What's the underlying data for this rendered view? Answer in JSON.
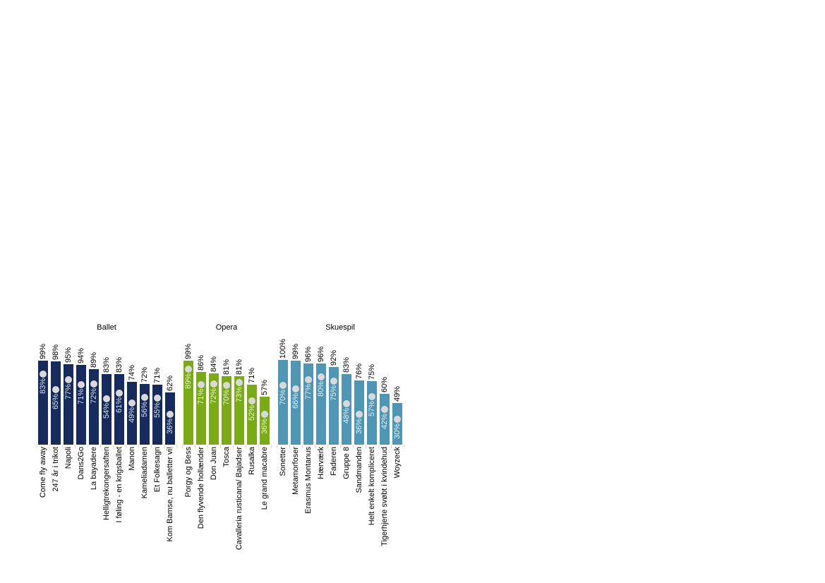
{
  "page": {
    "background": "#ffffff"
  },
  "chart_data": {
    "type": "bar",
    "title": "",
    "value_suffix": "%",
    "ylim": [
      0,
      100
    ],
    "grid": "off",
    "legend": "none",
    "marker": {
      "shape": "circle",
      "color": "#d9d9d9",
      "meaning": "secondary percentage plotted inside each bar"
    },
    "axis_tick_color": "#d9d9d9",
    "groups": [
      {
        "label": "Ballet",
        "bar_color": "#162a5c",
        "bars": [
          {
            "name": "Come fly away",
            "bar_pct": 99,
            "bar_label": "99%",
            "dot_pct": 83,
            "dot_label": "83%"
          },
          {
            "name": "247 år i trikot",
            "bar_pct": 98,
            "bar_label": "98%",
            "dot_pct": 65,
            "dot_label": "65%"
          },
          {
            "name": "Napoli",
            "bar_pct": 95,
            "bar_label": "95%",
            "dot_pct": 77,
            "dot_label": "77%"
          },
          {
            "name": "Dans2Go",
            "bar_pct": 94,
            "bar_label": "94%",
            "dot_pct": 71,
            "dot_label": "71%"
          },
          {
            "name": "La bayadere",
            "bar_pct": 89,
            "bar_label": "89%",
            "dot_pct": 72,
            "dot_label": "72%"
          },
          {
            "name": "Helligtrekongersaften",
            "bar_pct": 83,
            "bar_label": "83%",
            "dot_pct": 54,
            "dot_label": "54%"
          },
          {
            "name": "I føling - en krigsballet",
            "bar_pct": 83,
            "bar_label": "83%",
            "dot_pct": 61,
            "dot_label": "61%"
          },
          {
            "name": "Manon",
            "bar_pct": 74,
            "bar_label": "74%",
            "dot_pct": 49,
            "dot_label": "49%"
          },
          {
            "name": "Kameliadamen",
            "bar_pct": 72,
            "bar_label": "72%",
            "dot_pct": 56,
            "dot_label": "56%"
          },
          {
            "name": "Et Folkesagn",
            "bar_pct": 71,
            "bar_label": "71%",
            "dot_pct": 55,
            "dot_label": "55%"
          },
          {
            "name": "Kom Bamse, nu balletter vi!",
            "bar_pct": 62,
            "bar_label": "62%",
            "dot_pct": 36,
            "dot_label": "36%"
          }
        ]
      },
      {
        "label": "Opera",
        "bar_color": "#7aab17",
        "bars": [
          {
            "name": "Porgy og Bess",
            "bar_pct": 99,
            "bar_label": "99%",
            "dot_pct": 89,
            "dot_label": "89%"
          },
          {
            "name": "Den flyvende hollænder",
            "bar_pct": 86,
            "bar_label": "86%",
            "dot_pct": 71,
            "dot_label": "71%"
          },
          {
            "name": "Don Juan",
            "bar_pct": 84,
            "bar_label": "84%",
            "dot_pct": 72,
            "dot_label": "72%"
          },
          {
            "name": "Tosca",
            "bar_pct": 81,
            "bar_label": "81%",
            "dot_pct": 70,
            "dot_label": "70%"
          },
          {
            "name": "Cavalleria rusticana/ Bajadser",
            "bar_pct": 81,
            "bar_label": "81%",
            "dot_pct": 73,
            "dot_label": "73%"
          },
          {
            "name": "Rusalka",
            "bar_pct": 71,
            "bar_label": "71%",
            "dot_pct": 52,
            "dot_label": "52%"
          },
          {
            "name": "Le grand macabre",
            "bar_pct": 57,
            "bar_label": "57%",
            "dot_pct": 36,
            "dot_label": "36%"
          }
        ]
      },
      {
        "label": "Skuespil",
        "bar_color": "#4f95b4",
        "bars": [
          {
            "name": "Sonetter",
            "bar_pct": 100,
            "bar_label": "100%",
            "dot_pct": 70,
            "dot_label": "70%"
          },
          {
            "name": "Metamorfoser",
            "bar_pct": 99,
            "bar_label": "99%",
            "dot_pct": 66,
            "dot_label": "66%"
          },
          {
            "name": "Erasmus Montanus",
            "bar_pct": 96,
            "bar_label": "96%",
            "dot_pct": 77,
            "dot_label": "77%"
          },
          {
            "name": "Hærværk",
            "bar_pct": 96,
            "bar_label": "96%",
            "dot_pct": 80,
            "dot_label": "80%"
          },
          {
            "name": "Faderen",
            "bar_pct": 92,
            "bar_label": "92%",
            "dot_pct": 75,
            "dot_label": "75%"
          },
          {
            "name": "Gruppe 8",
            "bar_pct": 83,
            "bar_label": "83%",
            "dot_pct": 48,
            "dot_label": "48%"
          },
          {
            "name": "Sandmanden",
            "bar_pct": 76,
            "bar_label": "76%",
            "dot_pct": 36,
            "dot_label": "36%"
          },
          {
            "name": "Helt enkelt kompliceret",
            "bar_pct": 75,
            "bar_label": "75%",
            "dot_pct": 57,
            "dot_label": "57%"
          },
          {
            "name": "Tigerhjerte svøbt i kvindehud",
            "bar_pct": 60,
            "bar_label": "60%",
            "dot_pct": 42,
            "dot_label": "42%"
          },
          {
            "name": "Woyzeck",
            "bar_pct": 49,
            "bar_label": "49%",
            "dot_pct": 30,
            "dot_label": "30%"
          }
        ]
      }
    ]
  }
}
